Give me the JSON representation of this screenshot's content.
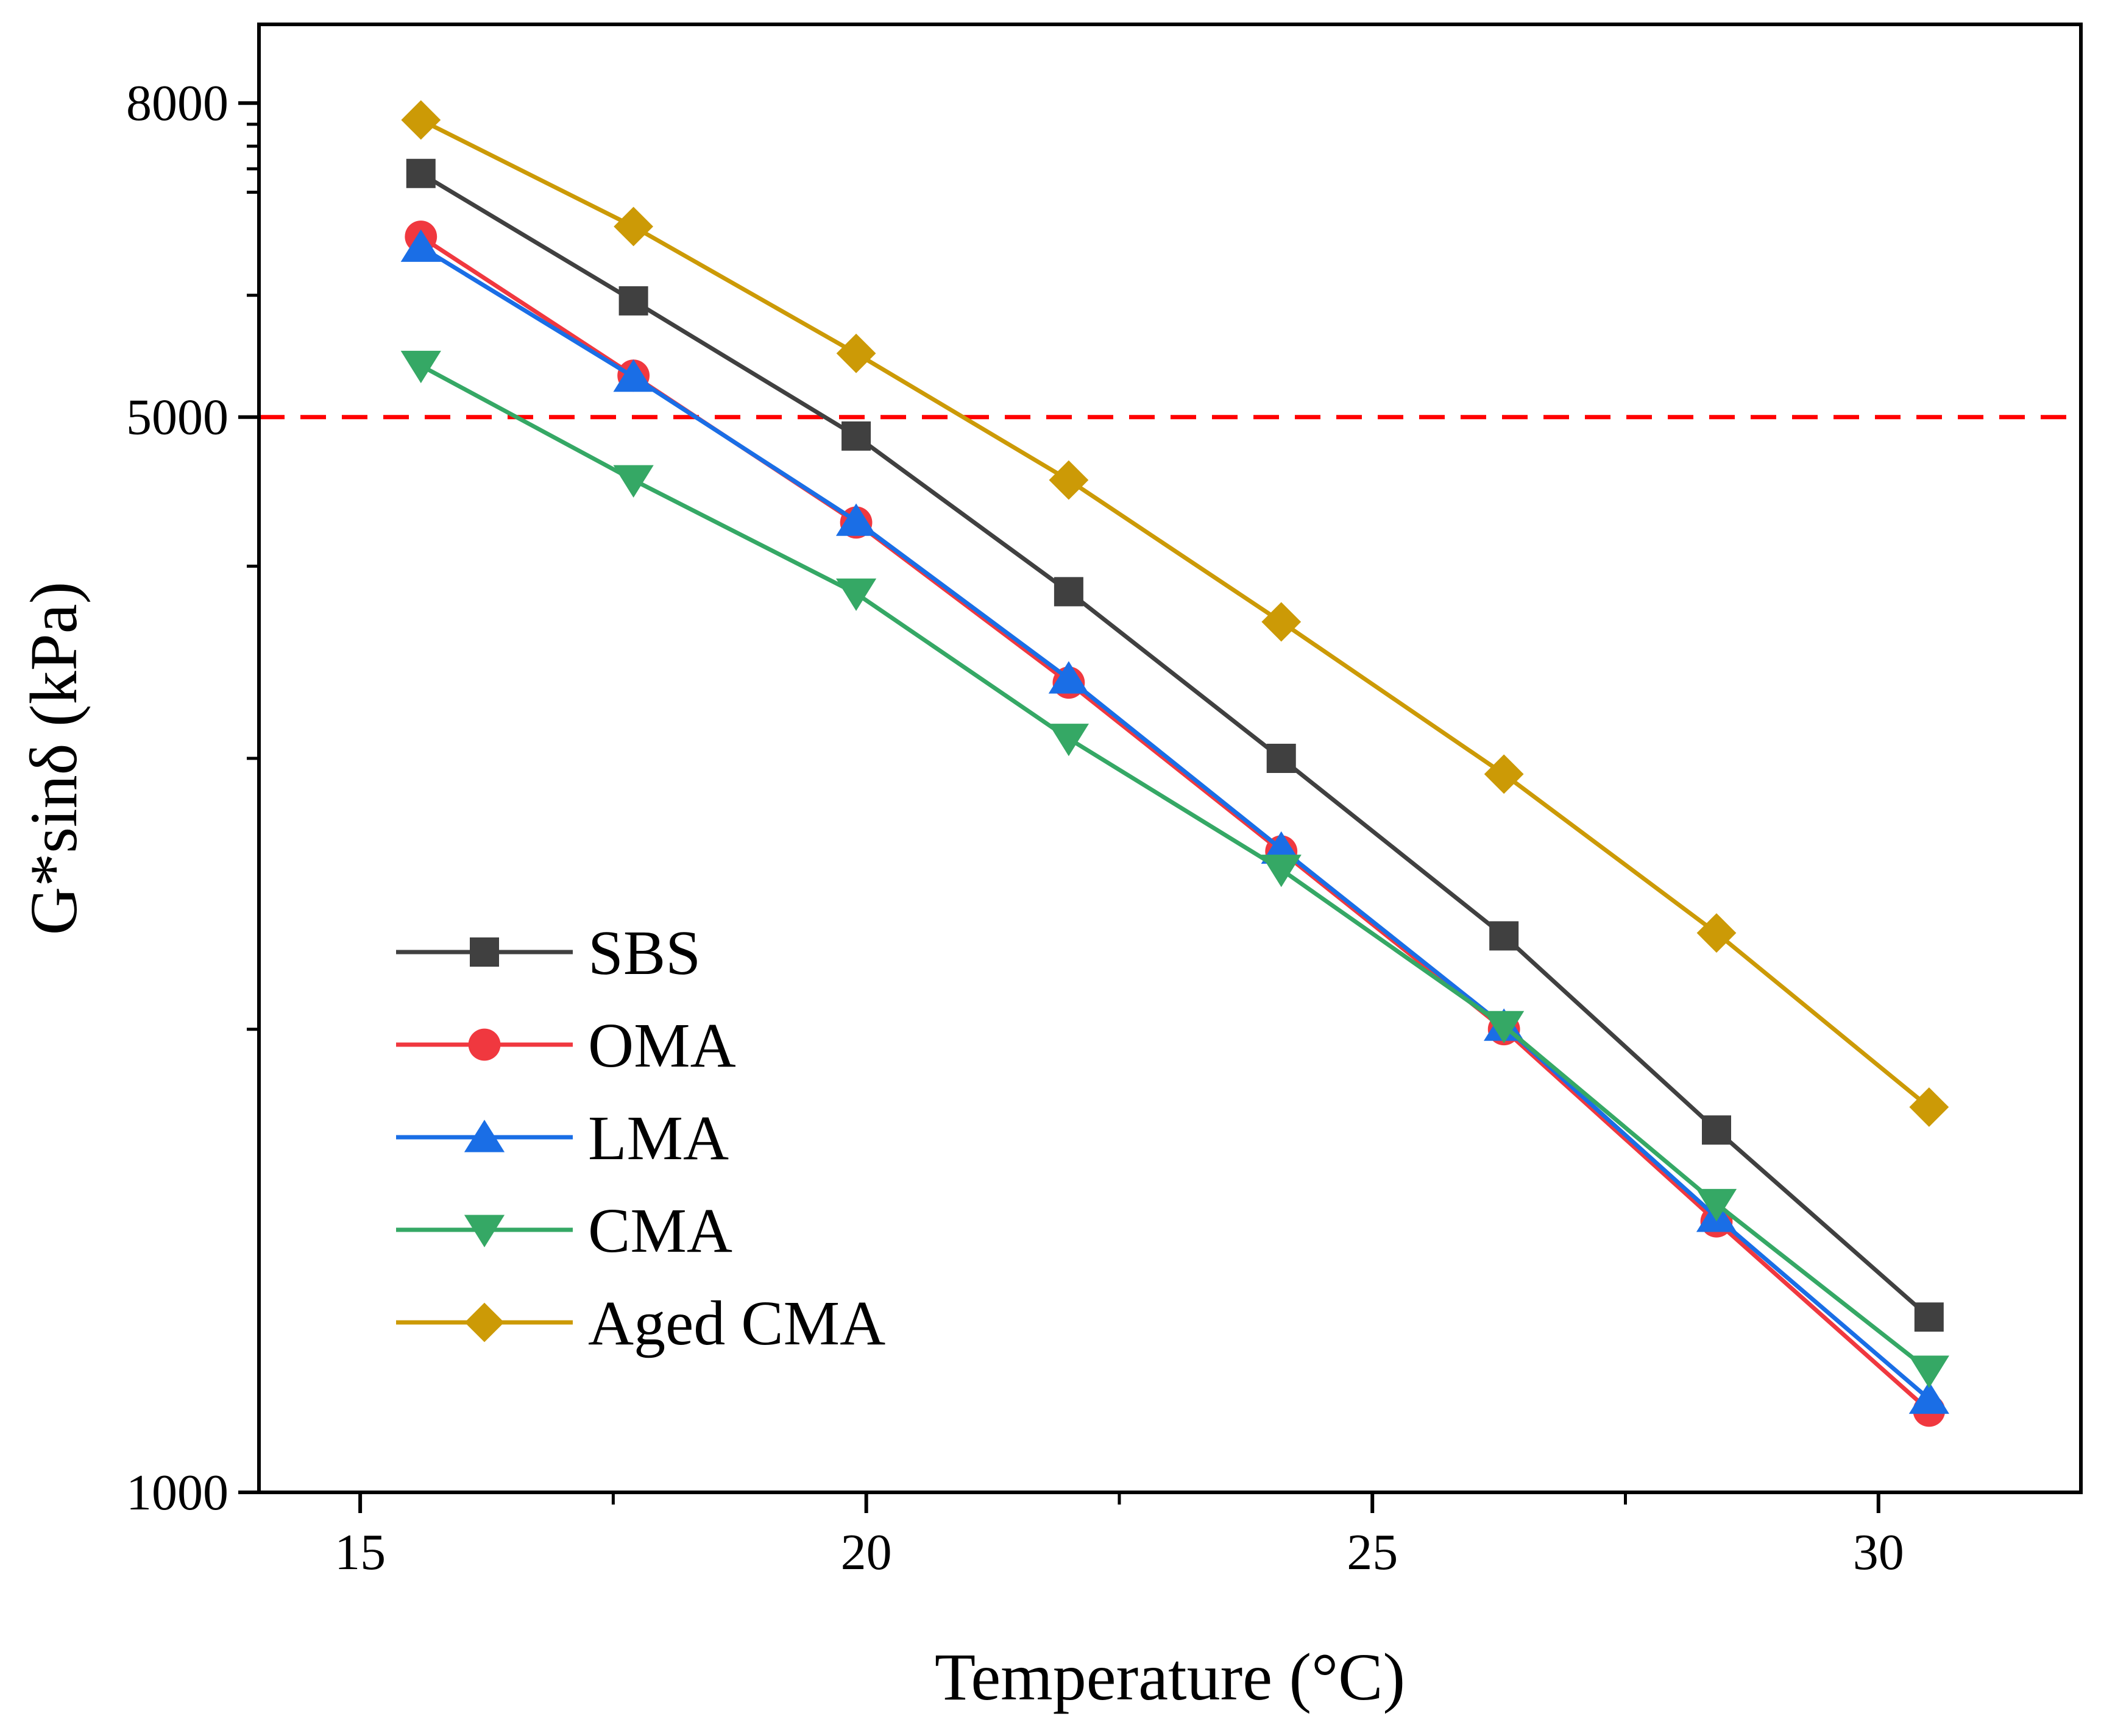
{
  "chart_data": {
    "type": "line",
    "title": "",
    "xlabel": "Temperature (°C)",
    "ylabel": "G*sinδ (kPa)",
    "y_scale": "log",
    "xlim": [
      14,
      32
    ],
    "ylim": [
      1000,
      9000
    ],
    "x_ticks": [
      15,
      20,
      25,
      30
    ],
    "y_ticks": [
      1000,
      5000,
      8000
    ],
    "grid": false,
    "legend_position": "bottom-left",
    "reference_line": {
      "y": 5000,
      "color": "#ff0000",
      "style": "dashed"
    },
    "x": [
      15.6,
      17.7,
      19.9,
      22.0,
      24.1,
      26.3,
      28.4,
      30.5
    ],
    "series": [
      {
        "name": "SBS",
        "color": "#404040",
        "marker": "square",
        "values": [
          7200,
          5950,
          4860,
          3850,
          3000,
          2300,
          1720,
          1300
        ]
      },
      {
        "name": "OMA",
        "color": "#f0383f",
        "marker": "circle",
        "values": [
          6550,
          5320,
          4270,
          3360,
          2610,
          2000,
          1500,
          1130
        ]
      },
      {
        "name": "LMA",
        "color": "#1a6ee6",
        "marker": "triangle-up",
        "values": [
          6450,
          5310,
          4280,
          3380,
          2620,
          2010,
          1510,
          1150
        ]
      },
      {
        "name": "CMA",
        "color": "#35a865",
        "marker": "triangle-down",
        "values": [
          5400,
          4550,
          3840,
          3090,
          2540,
          2010,
          1540,
          1200
        ]
      },
      {
        "name": "Aged CMA",
        "color": "#cc9a06",
        "marker": "diamond",
        "values": [
          7800,
          6650,
          5500,
          4550,
          3680,
          2930,
          2310,
          1780
        ]
      }
    ]
  }
}
